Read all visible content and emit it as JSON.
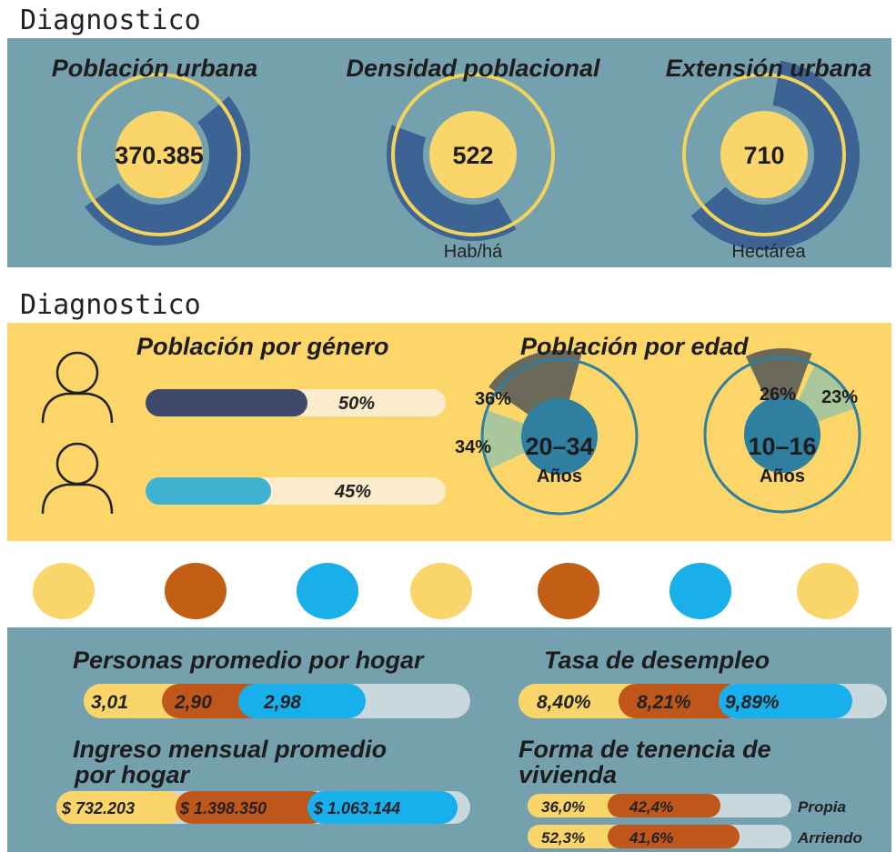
{
  "top": {
    "heading": "Diagnostico",
    "cards": [
      {
        "title": "Población urbana",
        "value": "370.385"
      },
      {
        "title": "Densidad poblacional",
        "value": "522",
        "unit": "Hab/há"
      },
      {
        "title": "Extensión urbana",
        "value": "710",
        "unit": "Hectárea"
      }
    ]
  },
  "population": {
    "heading": "Diagnostico",
    "gender": {
      "title": "Población por género",
      "bars": [
        "50%",
        "45%"
      ]
    },
    "age": {
      "title": "Población por edad",
      "groups": [
        {
          "range": "20–34",
          "unit": "Años",
          "shares": [
            "36%",
            "34%"
          ]
        },
        {
          "range": "10–16",
          "unit": "Años",
          "shares": [
            "26%",
            "23%"
          ]
        }
      ]
    }
  },
  "household": {
    "persons": {
      "title": "Personas promedio por hogar",
      "values": [
        "3,01",
        "2,90",
        "2,98"
      ]
    },
    "unemployment": {
      "title": "Tasa de desempleo",
      "values": [
        "8,40%",
        "8,21%",
        "9,89%"
      ]
    },
    "income": {
      "title_lines": [
        "Ingreso mensual promedio",
        "por hogar"
      ],
      "values": [
        "$ 732.203",
        "$ 1.398.350",
        "$ 1.063.144"
      ]
    },
    "tenure": {
      "title_lines": [
        "Forma de tenencia de",
        "vivienda"
      ],
      "rows": [
        {
          "label": "Propia",
          "values": [
            "36,0%",
            "42,4%"
          ]
        },
        {
          "label": "Arriendo",
          "values": [
            "52,3%",
            "41,6%"
          ]
        }
      ]
    }
  }
}
